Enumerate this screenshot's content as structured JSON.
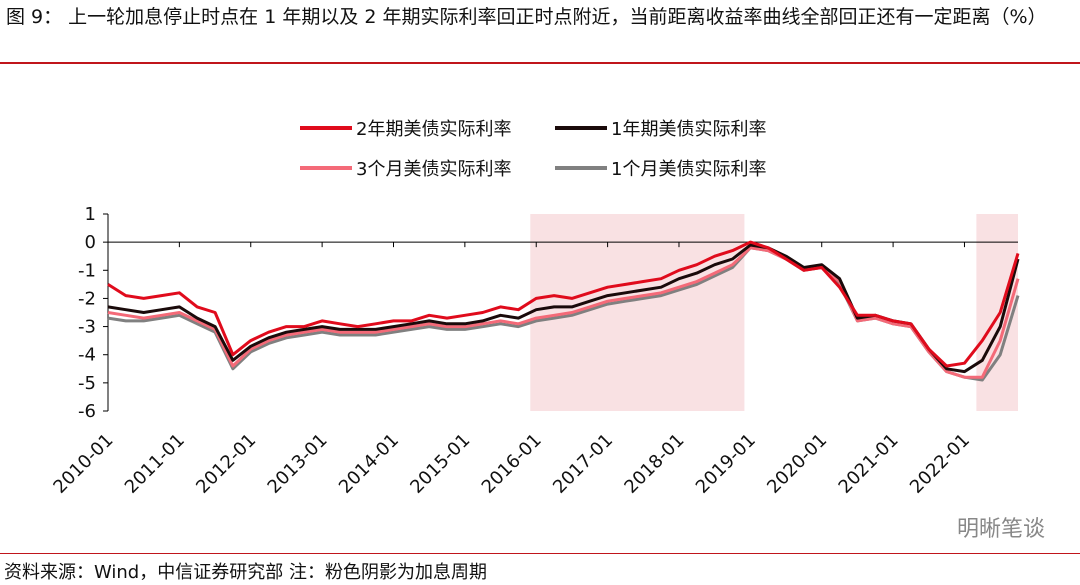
{
  "title": "图 9：  上一轮加息停止时点在 1 年期以及 2 年期实际利率回正时点附近，当前距离收益率曲线全部回正还有一定距离（%）",
  "source": "资料来源：Wind，中信证券研究部   注：粉色阴影为加息周期",
  "watermark": "明晰笔谈",
  "chart_data": {
    "type": "line",
    "x": [
      "2010-01",
      "2010-04",
      "2010-07",
      "2010-10",
      "2011-01",
      "2011-04",
      "2011-07",
      "2011-10",
      "2012-01",
      "2012-04",
      "2012-07",
      "2012-10",
      "2013-01",
      "2013-04",
      "2013-07",
      "2013-10",
      "2014-01",
      "2014-04",
      "2014-07",
      "2014-10",
      "2015-01",
      "2015-04",
      "2015-07",
      "2015-10",
      "2016-01",
      "2016-04",
      "2016-07",
      "2016-10",
      "2017-01",
      "2017-04",
      "2017-07",
      "2017-10",
      "2018-01",
      "2018-04",
      "2018-07",
      "2018-10",
      "2019-01",
      "2019-04",
      "2019-07",
      "2019-10",
      "2020-01",
      "2020-04",
      "2020-07",
      "2020-10",
      "2021-01",
      "2021-04",
      "2021-07",
      "2021-10",
      "2022-01",
      "2022-04",
      "2022-07",
      "2022-10"
    ],
    "series": [
      {
        "name": "2年期美债实际利率",
        "color": "#e00b1c",
        "values": [
          -1.5,
          -1.9,
          -2.0,
          -1.9,
          -1.8,
          -2.3,
          -2.5,
          -4.0,
          -3.5,
          -3.2,
          -3.0,
          -3.0,
          -2.8,
          -2.9,
          -3.0,
          -2.9,
          -2.8,
          -2.8,
          -2.6,
          -2.7,
          -2.6,
          -2.5,
          -2.3,
          -2.4,
          -2.0,
          -1.9,
          -2.0,
          -1.8,
          -1.6,
          -1.5,
          -1.4,
          -1.3,
          -1.0,
          -0.8,
          -0.5,
          -0.3,
          0.0,
          -0.2,
          -0.6,
          -1.0,
          -0.9,
          -1.6,
          -2.6,
          -2.6,
          -2.8,
          -2.9,
          -3.8,
          -4.4,
          -4.3,
          -3.5,
          -2.5,
          -0.4
        ]
      },
      {
        "name": "1年期美债实际利率",
        "color": "#1a0a0a",
        "values": [
          -2.3,
          -2.4,
          -2.5,
          -2.4,
          -2.3,
          -2.7,
          -3.0,
          -4.2,
          -3.7,
          -3.4,
          -3.2,
          -3.1,
          -3.0,
          -3.1,
          -3.1,
          -3.1,
          -3.0,
          -2.9,
          -2.8,
          -2.9,
          -2.9,
          -2.8,
          -2.6,
          -2.7,
          -2.4,
          -2.3,
          -2.3,
          -2.1,
          -1.9,
          -1.8,
          -1.7,
          -1.6,
          -1.3,
          -1.1,
          -0.8,
          -0.6,
          -0.1,
          -0.2,
          -0.5,
          -0.9,
          -0.8,
          -1.3,
          -2.7,
          -2.6,
          -2.8,
          -2.9,
          -3.8,
          -4.5,
          -4.6,
          -4.2,
          -3.0,
          -0.6
        ]
      },
      {
        "name": "3个月美债实际利率",
        "color": "#f46a78",
        "values": [
          -2.5,
          -2.6,
          -2.7,
          -2.6,
          -2.5,
          -2.8,
          -3.1,
          -4.4,
          -3.8,
          -3.5,
          -3.3,
          -3.2,
          -3.1,
          -3.2,
          -3.2,
          -3.2,
          -3.1,
          -3.0,
          -2.9,
          -3.0,
          -3.0,
          -2.9,
          -2.8,
          -2.9,
          -2.7,
          -2.6,
          -2.5,
          -2.3,
          -2.1,
          -2.0,
          -1.9,
          -1.8,
          -1.6,
          -1.4,
          -1.1,
          -0.8,
          -0.2,
          -0.3,
          -0.6,
          -1.0,
          -0.9,
          -1.4,
          -2.8,
          -2.7,
          -2.9,
          -3.0,
          -3.9,
          -4.6,
          -4.8,
          -4.8,
          -3.5,
          -1.3
        ]
      },
      {
        "name": "1个月美债实际利率",
        "color": "#808080",
        "values": [
          -2.7,
          -2.8,
          -2.8,
          -2.7,
          -2.6,
          -2.9,
          -3.2,
          -4.5,
          -3.9,
          -3.6,
          -3.4,
          -3.3,
          -3.2,
          -3.3,
          -3.3,
          -3.3,
          -3.2,
          -3.1,
          -3.0,
          -3.1,
          -3.1,
          -3.0,
          -2.9,
          -3.0,
          -2.8,
          -2.7,
          -2.6,
          -2.4,
          -2.2,
          -2.1,
          -2.0,
          -1.9,
          -1.7,
          -1.5,
          -1.2,
          -0.9,
          -0.2,
          -0.3,
          -0.6,
          -1.0,
          -0.9,
          -1.5,
          -2.8,
          -2.7,
          -2.9,
          -3.0,
          -3.9,
          -4.6,
          -4.8,
          -4.9,
          -4.0,
          -1.9
        ]
      }
    ],
    "xlim": [
      "2010-01",
      "2022-10"
    ],
    "xticks": [
      "2010-01",
      "2011-01",
      "2012-01",
      "2013-01",
      "2014-01",
      "2015-01",
      "2016-01",
      "2017-01",
      "2018-01",
      "2019-01",
      "2020-01",
      "2021-01",
      "2022-01"
    ],
    "ylim": [
      -6,
      1
    ],
    "yticks": [
      1,
      0,
      -1,
      -2,
      -3,
      -4,
      -5,
      -6
    ],
    "shaded_periods": [
      {
        "start": "2015-12",
        "end": "2018-12",
        "color": "#f9e1e3"
      },
      {
        "start": "2022-03",
        "end": "2022-10",
        "color": "#f9e1e3"
      }
    ],
    "legend": "top"
  }
}
